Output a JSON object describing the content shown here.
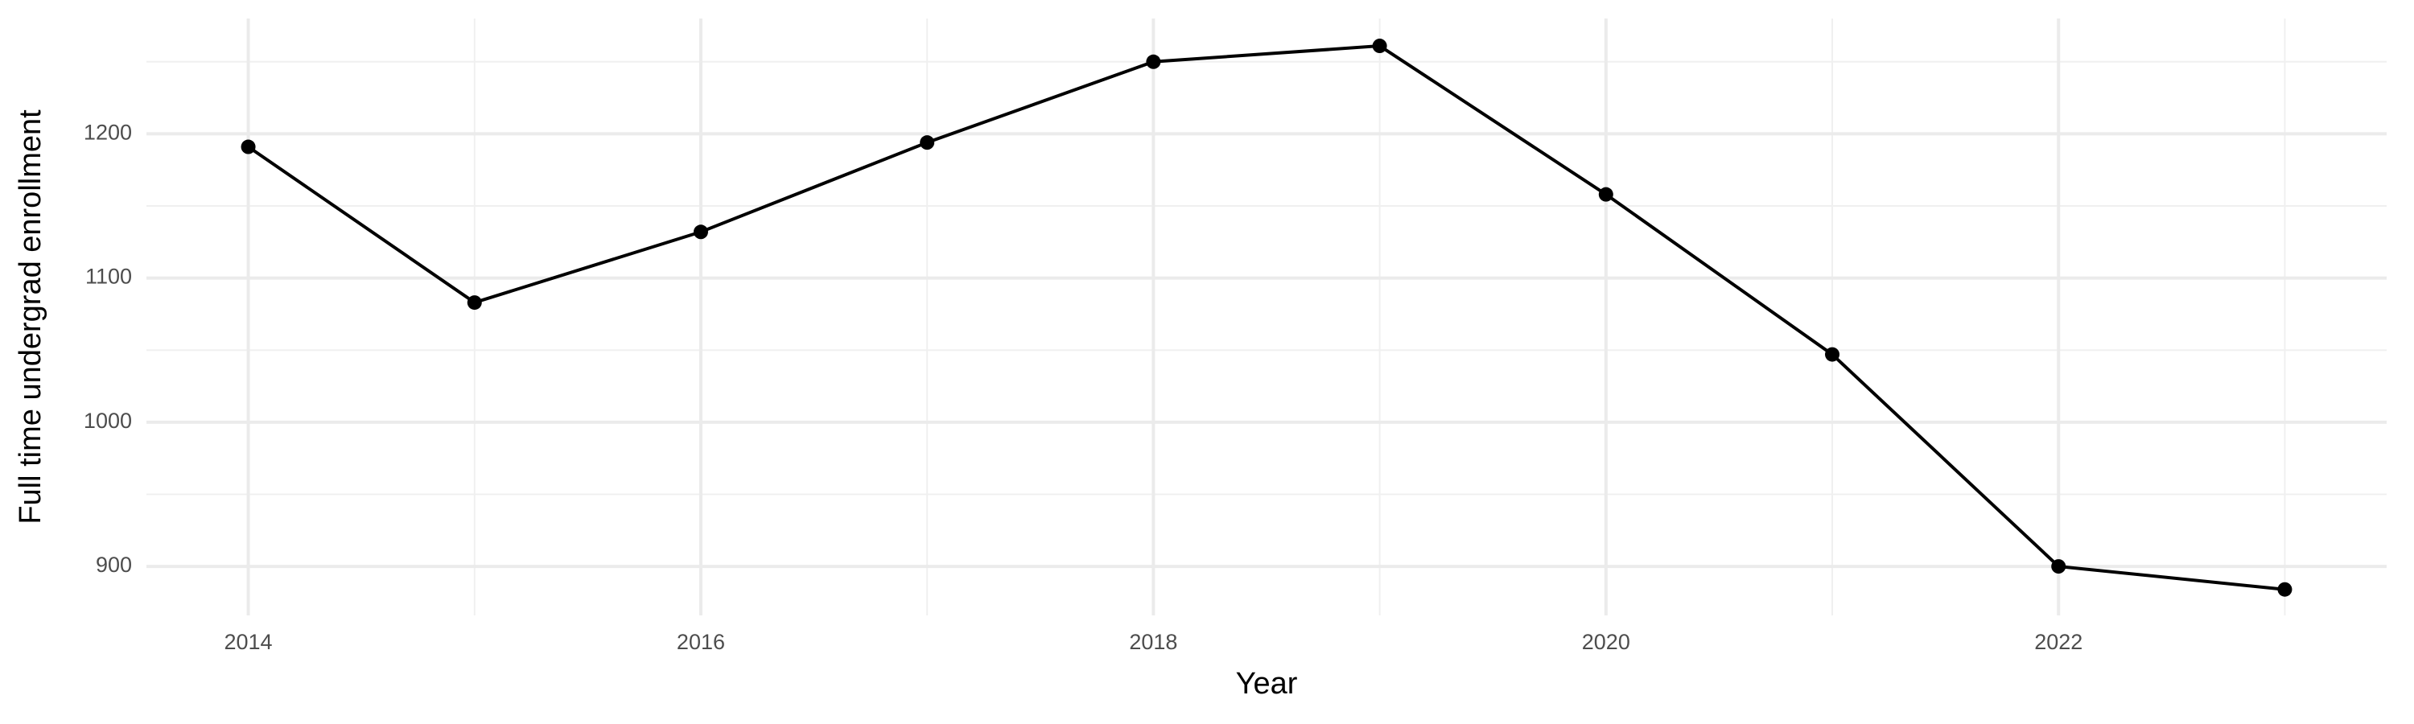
{
  "chart_data": {
    "type": "line",
    "x_label": "Year",
    "y_label": "Full time undergrad enrollment",
    "x": [
      2014,
      2015,
      2016,
      2017,
      2018,
      2019,
      2020,
      2021,
      2022,
      2023
    ],
    "series": [
      {
        "name": "Full time undergrad enrollment",
        "color": "#000000",
        "values": [
          1191,
          1083,
          1132,
          1194,
          1250,
          1261,
          1158,
          1047,
          900,
          884
        ]
      }
    ],
    "xlim": [
      2013.55,
      2023.45
    ],
    "xticks": [
      2014,
      2016,
      2018,
      2020,
      2022
    ],
    "minor_xticks": [
      2015,
      2017,
      2019,
      2021,
      2023
    ],
    "ylim": [
      866,
      1280
    ],
    "yticks": [
      900,
      1000,
      1100,
      1200
    ],
    "minor_yticks": [
      950,
      1050,
      1150,
      1250
    ],
    "grid": true
  }
}
